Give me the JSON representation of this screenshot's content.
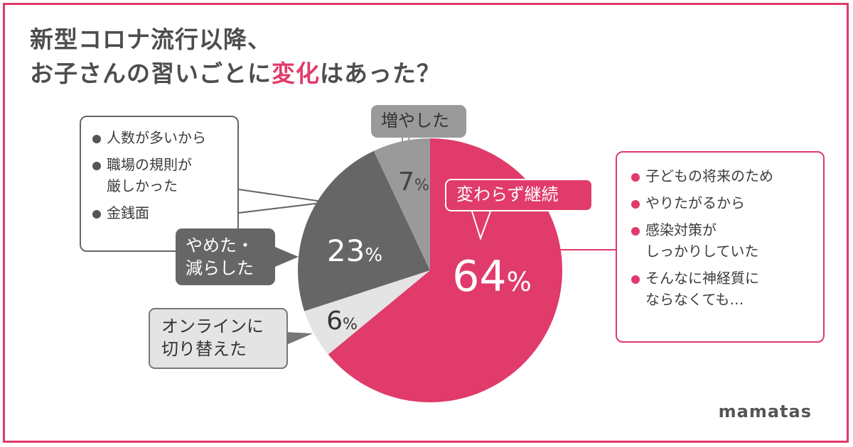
{
  "title": {
    "line1": "新型コロナ流行以降、",
    "line2_before": "お子さんの習いごとに",
    "line2_accent": "変化",
    "line2_after": "はあった？"
  },
  "brand": "mamatas",
  "colors": {
    "accent": "#e03b6b",
    "dark_gray": "#666666",
    "mid_gray": "#9a9a9a",
    "light_gray": "#e4e4e4"
  },
  "chart_data": {
    "type": "pie",
    "unit": "%",
    "slices": [
      {
        "label": "変わらず継続",
        "value": 64,
        "color": "#e03b6b"
      },
      {
        "label": "オンラインに\n切り替えた",
        "value": 6,
        "color": "#e4e4e4"
      },
      {
        "label": "やめた・\n減らした",
        "value": 23,
        "color": "#666666"
      },
      {
        "label": "増やした",
        "value": 7,
        "color": "#9a9a9a"
      }
    ]
  },
  "reasons_quit": [
    "人数が多いから",
    "職場の規則が\n厳しかった",
    "金銭面"
  ],
  "reasons_continue": [
    "子どもの将来のため",
    "やりたがるから",
    "感染対策が\nしっかりしていた",
    "そんなに神経質に\nならなくても…"
  ]
}
